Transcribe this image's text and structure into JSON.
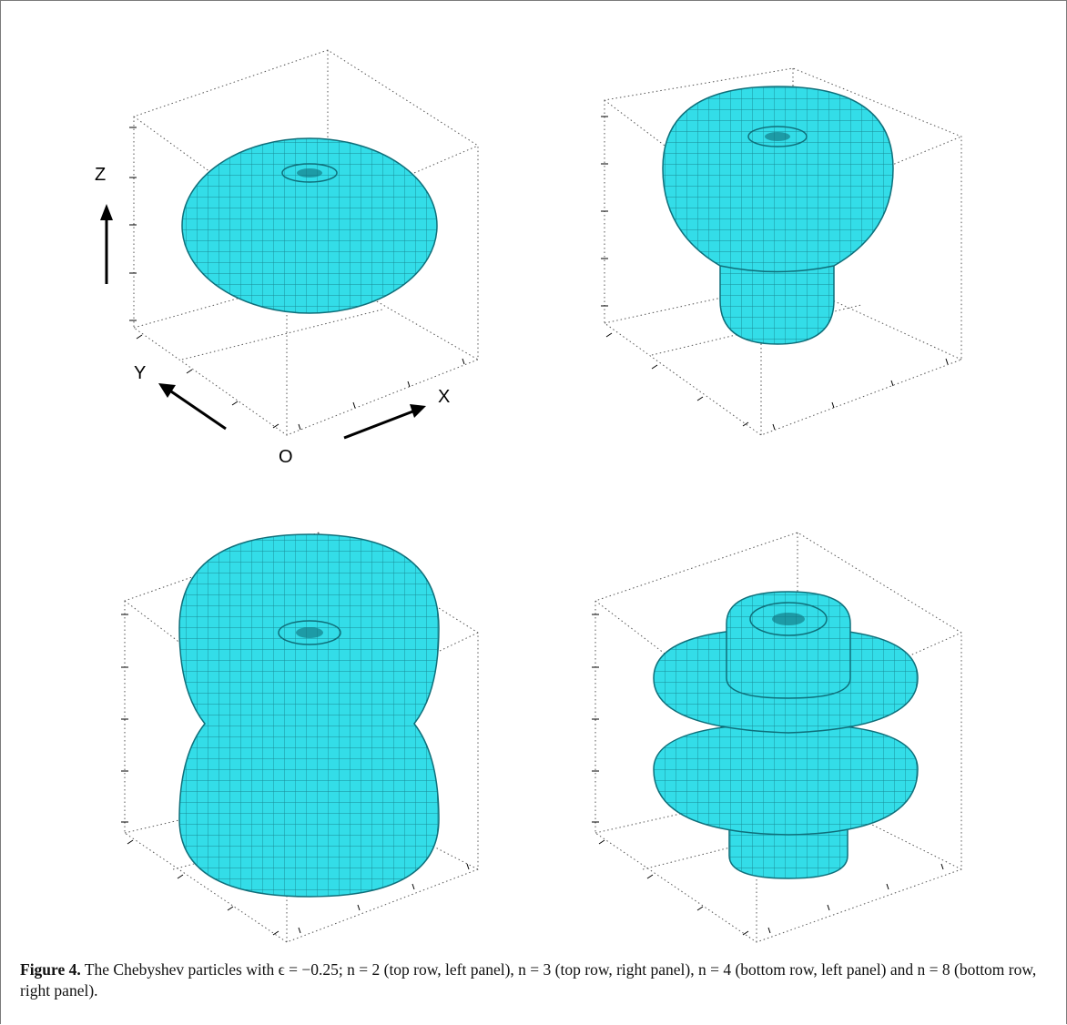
{
  "figure": {
    "axis_labels": {
      "z": "Z",
      "y": "Y",
      "x": "X",
      "origin": "O"
    },
    "surface_color": "#33dde8",
    "mesh_color": "#0f6f7a",
    "panels": [
      {
        "id": "top-left",
        "n": 2,
        "shape": "oblate spheroid"
      },
      {
        "id": "top-right",
        "n": 3,
        "shape": "mushroom"
      },
      {
        "id": "bottom-left",
        "n": 4,
        "shape": "waisted peanut"
      },
      {
        "id": "bottom-right",
        "n": 8,
        "shape": "stacked discs"
      }
    ],
    "caption": {
      "label": "Figure 4.",
      "text": " The Chebyshev particles with ϵ = −0.25; n = 2 (top row, left panel), n = 3 (top row, right panel), n = 4 (bottom row, left panel) and n = 8 (bottom row, right panel)."
    }
  }
}
